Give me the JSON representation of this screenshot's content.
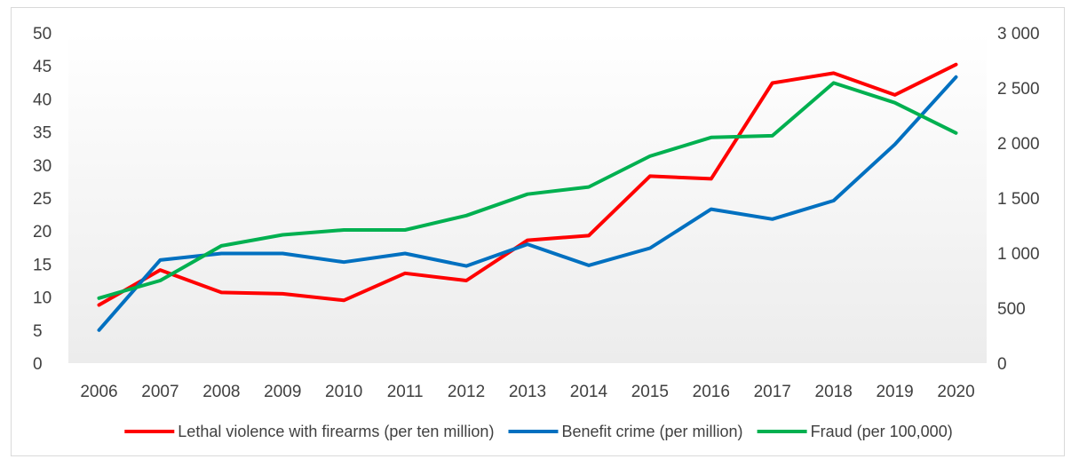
{
  "chart_data": {
    "type": "line",
    "title": "",
    "xlabel": "",
    "ylabel": "",
    "categories": [
      "2006",
      "2007",
      "2008",
      "2009",
      "2010",
      "2011",
      "2012",
      "2013",
      "2014",
      "2015",
      "2016",
      "2017",
      "2018",
      "2019",
      "2020"
    ],
    "y_left": {
      "range": [
        0,
        50
      ],
      "ticks": [
        0,
        5,
        10,
        15,
        20,
        25,
        30,
        35,
        40,
        45,
        50
      ],
      "tick_labels": [
        "0",
        "5",
        "10",
        "15",
        "20",
        "25",
        "30",
        "35",
        "40",
        "45",
        "50"
      ]
    },
    "y_right": {
      "range": [
        0,
        3000
      ],
      "ticks": [
        0,
        500,
        1000,
        1500,
        2000,
        2500,
        3000
      ],
      "tick_labels": [
        "0",
        "500",
        "1 000",
        "1 500",
        "2 000",
        "2 500",
        "3 000"
      ]
    },
    "grid": false,
    "plot_background": "gradient white to light gray",
    "legend_position": "bottom",
    "series": [
      {
        "name": "Lethal violence with firearms (per ten million)",
        "axis": "left",
        "color": "#ff0000",
        "values": [
          8.8,
          14.1,
          10.7,
          10.5,
          9.5,
          13.6,
          12.5,
          18.6,
          19.3,
          28.3,
          27.9,
          42.4,
          43.9,
          40.6,
          45.2
        ]
      },
      {
        "name": "Benefit crime (per million)",
        "axis": "left",
        "color": "#0070c0",
        "values": [
          5.0,
          15.6,
          16.6,
          16.6,
          15.3,
          16.6,
          14.7,
          18.0,
          14.8,
          17.4,
          23.3,
          21.8,
          24.6,
          33.1,
          43.3
        ]
      },
      {
        "name": "Fraud (per 100,000)",
        "axis": "right",
        "color": "#00b050",
        "values": [
          590,
          750,
          1065,
          1165,
          1210,
          1210,
          1340,
          1535,
          1600,
          1880,
          2050,
          2065,
          2545,
          2365,
          2090
        ]
      }
    ]
  }
}
